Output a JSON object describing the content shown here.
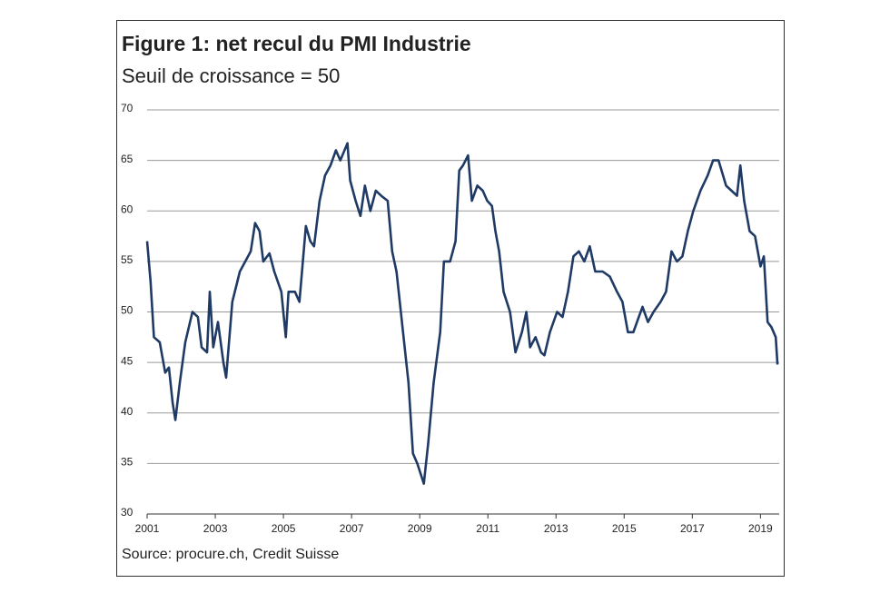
{
  "chart_data": {
    "type": "line",
    "title": "Figure 1: net recul du PMI Industrie",
    "subtitle": "Seuil de croissance = 50",
    "source": "Source: procure.ch, Credit Suisse",
    "x": [
      2001.0,
      2001.1,
      2001.2,
      2001.37,
      2001.53,
      2001.64,
      2001.75,
      2001.83,
      2001.96,
      2002.12,
      2002.33,
      2002.49,
      2002.6,
      2002.76,
      2002.84,
      2002.94,
      2003.08,
      2003.24,
      2003.32,
      2003.5,
      2003.72,
      2003.88,
      2004.04,
      2004.17,
      2004.3,
      2004.41,
      2004.59,
      2004.73,
      2004.94,
      2005.07,
      2005.15,
      2005.34,
      2005.47,
      2005.66,
      2005.79,
      2005.9,
      2006.06,
      2006.22,
      2006.38,
      2006.54,
      2006.67,
      2006.88,
      2006.96,
      2007.12,
      2007.26,
      2007.39,
      2007.55,
      2007.71,
      2007.87,
      2008.06,
      2008.19,
      2008.32,
      2008.51,
      2008.67,
      2008.8,
      2008.93,
      2009.12,
      2009.25,
      2009.41,
      2009.6,
      2009.71,
      2009.89,
      2010.05,
      2010.16,
      2010.27,
      2010.42,
      2010.53,
      2010.69,
      2010.85,
      2010.98,
      2011.12,
      2011.22,
      2011.33,
      2011.46,
      2011.65,
      2011.81,
      2012.0,
      2012.13,
      2012.24,
      2012.4,
      2012.56,
      2012.66,
      2012.82,
      2013.03,
      2013.19,
      2013.35,
      2013.51,
      2013.67,
      2013.83,
      2013.99,
      2014.15,
      2014.37,
      2014.58,
      2014.79,
      2014.95,
      2015.11,
      2015.27,
      2015.43,
      2015.54,
      2015.7,
      2015.86,
      2016.07,
      2016.23,
      2016.39,
      2016.55,
      2016.71,
      2016.87,
      2017.03,
      2017.24,
      2017.45,
      2017.61,
      2017.77,
      2017.99,
      2018.15,
      2018.31,
      2018.41,
      2018.52,
      2018.68,
      2018.84,
      2019.0,
      2019.1,
      2019.21,
      2019.32,
      2019.45,
      2019.5
    ],
    "series": [
      {
        "name": "PMI Industrie",
        "color": "#1f3a64",
        "values": [
          57,
          53,
          47.5,
          47,
          44,
          44.5,
          41,
          39.3,
          43,
          47,
          50,
          49.5,
          46.5,
          46,
          52,
          46.5,
          49,
          45,
          43.5,
          51,
          54,
          55,
          56,
          58.8,
          58,
          55,
          55.8,
          54,
          52,
          47.5,
          52,
          52,
          51,
          58.5,
          57,
          56.5,
          61,
          63.5,
          64.5,
          66,
          65,
          66.7,
          63,
          61,
          59.5,
          62.5,
          60,
          62,
          61.5,
          61,
          56,
          54,
          48,
          43,
          36,
          35,
          33,
          37,
          43,
          48,
          55,
          55,
          57,
          64,
          64.5,
          65.5,
          61,
          62.5,
          62,
          61,
          60.5,
          58,
          56,
          52,
          50,
          46,
          48,
          50,
          46.5,
          47.5,
          46,
          45.7,
          48,
          50,
          49.5,
          52,
          55.5,
          56,
          55,
          56.5,
          54,
          54,
          53.5,
          52,
          51,
          48,
          48,
          49.5,
          50.5,
          49,
          50,
          51,
          52,
          56,
          55,
          55.5,
          58,
          60,
          62,
          63.5,
          65,
          65,
          62.5,
          62,
          61.5,
          64.5,
          61,
          58,
          57.5,
          54.5,
          55.5,
          49,
          48.5,
          47.5,
          44.8
        ]
      }
    ],
    "xlim": [
      2001,
      2019.55
    ],
    "xticks": [
      2001,
      2003,
      2005,
      2007,
      2009,
      2011,
      2013,
      2015,
      2017,
      2019
    ],
    "ylim": [
      30,
      70
    ],
    "yticks": [
      30,
      35,
      40,
      45,
      50,
      55,
      60,
      65,
      70
    ],
    "grid": true
  }
}
